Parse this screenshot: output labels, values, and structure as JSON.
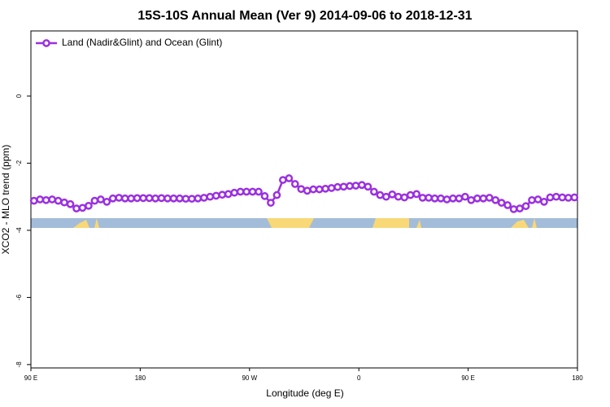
{
  "chart_data": {
    "type": "line",
    "title": "15S-10S Annual Mean (Ver 9)   2014-09-06 to 2018-12-31",
    "xlabel": "Longitude (deg E)",
    "ylabel": "XCO2 - MLO trend (ppm)",
    "xlim": [
      90,
      540
    ],
    "ylim": [
      -8.1,
      1.94
    ],
    "xticks": [
      {
        "value": 90,
        "label": "90 E"
      },
      {
        "value": 180,
        "label": "180"
      },
      {
        "value": 270,
        "label": "90 W"
      },
      {
        "value": 360,
        "label": "0"
      },
      {
        "value": 450,
        "label": "90 E"
      },
      {
        "value": 540,
        "label": "180"
      }
    ],
    "yticks": [
      -8,
      -6,
      -4,
      -2,
      0
    ],
    "legend": "upper left",
    "x": [
      92.5,
      97.5,
      102.5,
      107.5,
      112.5,
      117.5,
      122.5,
      127.5,
      132.5,
      137.5,
      142.5,
      147.5,
      152.5,
      157.5,
      162.5,
      167.5,
      172.5,
      177.5,
      182.5,
      187.5,
      192.5,
      197.5,
      202.5,
      207.5,
      212.5,
      217.5,
      222.5,
      227.5,
      232.5,
      237.5,
      242.5,
      247.5,
      252.5,
      257.5,
      262.5,
      267.5,
      272.5,
      277.5,
      282.5,
      287.5,
      292.5,
      297.5,
      302.5,
      307.5,
      312.5,
      317.5,
      322.5,
      327.5,
      332.5,
      337.5,
      342.5,
      347.5,
      352.5,
      357.5,
      362.5,
      367.5,
      372.5,
      377.5,
      382.5,
      387.5,
      392.5,
      397.5,
      402.5,
      407.5,
      412.5,
      417.5,
      422.5,
      427.5,
      432.5,
      437.5,
      442.5,
      447.5,
      452.5,
      457.5,
      462.5,
      467.5,
      472.5,
      477.5,
      482.5,
      487.5,
      492.5,
      497.5,
      502.5,
      507.5,
      512.5,
      517.5,
      522.5,
      527.5,
      532.5,
      537.5
    ],
    "series": [
      {
        "name": "Land (Nadir&Glint) and Ocean (Glint)",
        "color": "#9b30e0",
        "values": [
          -3.12,
          -3.08,
          -3.1,
          -3.08,
          -3.12,
          -3.17,
          -3.22,
          -3.35,
          -3.33,
          -3.27,
          -3.12,
          -3.08,
          -3.15,
          -3.05,
          -3.03,
          -3.05,
          -3.05,
          -3.04,
          -3.04,
          -3.04,
          -3.05,
          -3.04,
          -3.05,
          -3.05,
          -3.05,
          -3.06,
          -3.06,
          -3.05,
          -3.03,
          -3.0,
          -2.97,
          -2.94,
          -2.92,
          -2.88,
          -2.85,
          -2.85,
          -2.85,
          -2.85,
          -2.98,
          -3.18,
          -2.95,
          -2.5,
          -2.45,
          -2.62,
          -2.77,
          -2.82,
          -2.78,
          -2.78,
          -2.76,
          -2.74,
          -2.71,
          -2.7,
          -2.68,
          -2.67,
          -2.65,
          -2.7,
          -2.85,
          -2.95,
          -3.0,
          -2.93,
          -3.0,
          -3.02,
          -2.95,
          -2.92,
          -3.03,
          -3.03,
          -3.05,
          -3.05,
          -3.08,
          -3.05,
          -3.05,
          -3.0,
          -3.1,
          -3.05,
          -3.05,
          -3.03,
          -3.1,
          -3.18,
          -3.25,
          -3.37,
          -3.35,
          -3.28,
          -3.1,
          -3.08,
          -3.15,
          -3.02,
          -3.0,
          -3.02,
          -3.03,
          -3.02
        ]
      }
    ]
  }
}
